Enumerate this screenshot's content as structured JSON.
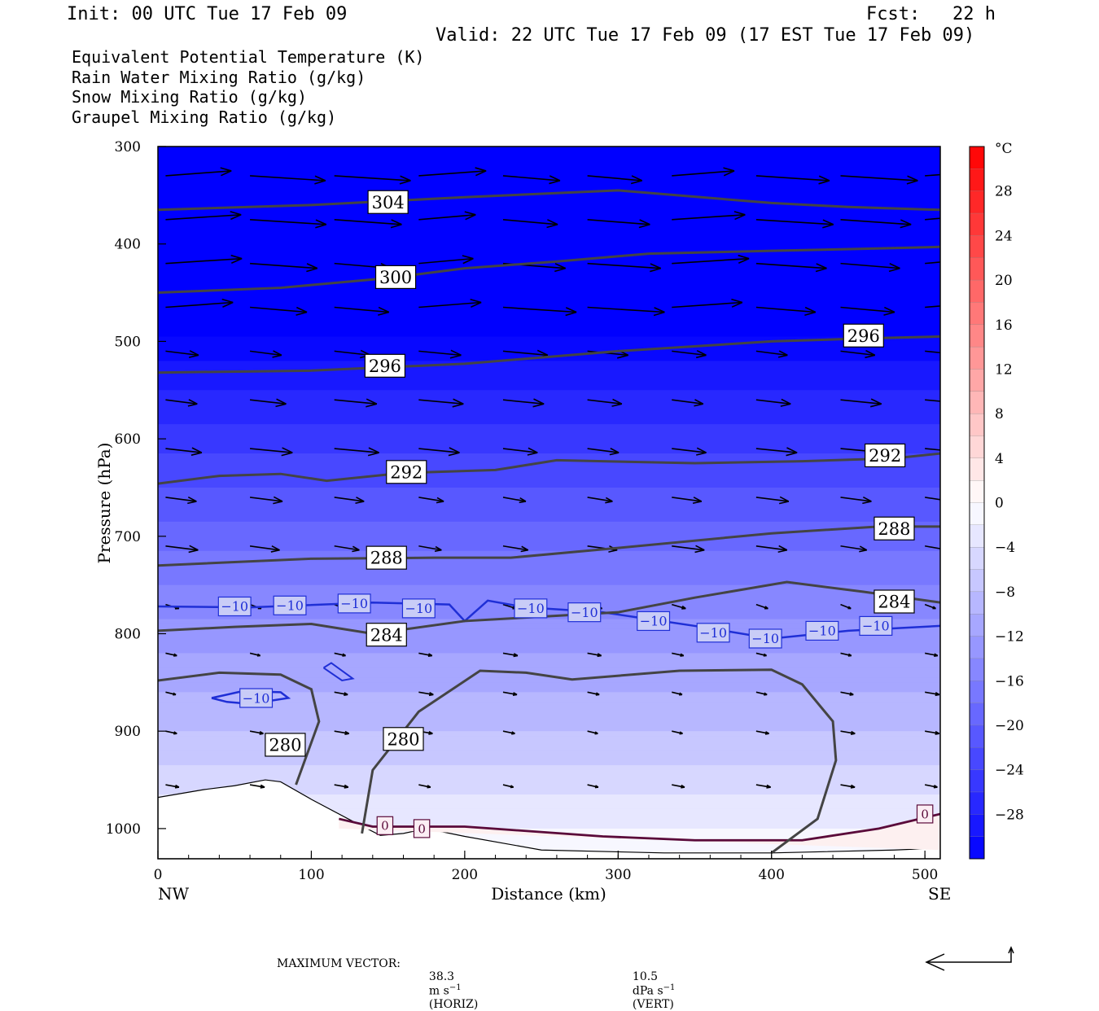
{
  "header": {
    "init": "Init: 00 UTC Tue 17 Feb 09",
    "fcst": "Fcst:   22 h",
    "valid": "Valid: 22 UTC Tue 17 Feb 09 (17 EST Tue 17 Feb 09)"
  },
  "legend": {
    "theta_e": {
      "label": "Equivalent Potential Temperature (K)",
      "color": "#555555"
    },
    "rain": {
      "label": "Rain Water Mixing Ratio (g/kg)",
      "color": "#0a7a0a"
    },
    "snow": {
      "label": "Snow Mixing Ratio (g/kg)",
      "color": "#f2a066"
    },
    "graupel": {
      "label": "Graupel Mixing Ratio (g/kg)",
      "color": "#ee82ee"
    }
  },
  "chart_data": {
    "type": "heatmap",
    "xlabel": "Distance (km)",
    "ylabel": "Pressure (hPa)",
    "x_range": [
      0,
      510
    ],
    "y_range": [
      300,
      1030
    ],
    "x_ticks": [
      0,
      100,
      200,
      300,
      400,
      500
    ],
    "y_ticks": [
      300,
      400,
      500,
      600,
      700,
      800,
      900,
      1000
    ],
    "x_end_labels": {
      "left": "NW",
      "right": "SE"
    },
    "colorbar": {
      "unit": "°C",
      "tick_labels": [
        "28",
        "24",
        "20",
        "16",
        "12",
        "8",
        "4",
        "0",
        "−4",
        "−8",
        "−12",
        "−16",
        "−20",
        "−24",
        "−28"
      ],
      "range": [
        -32,
        32
      ],
      "step": 2
    },
    "temperature_background": [
      {
        "p": 300,
        "t": -32
      },
      {
        "p": 480,
        "t": -32
      },
      {
        "p": 520,
        "t": -29
      },
      {
        "p": 600,
        "t": -24
      },
      {
        "p": 700,
        "t": -18
      },
      {
        "p": 800,
        "t": -12
      },
      {
        "p": 900,
        "t": -7
      },
      {
        "p": 1000,
        "t": -1
      },
      {
        "p": 1030,
        "t": 1
      }
    ],
    "theta_e_contours": [
      {
        "value": 304,
        "label": "304",
        "points": [
          [
            0,
            365
          ],
          [
            100,
            360
          ],
          [
            200,
            352
          ],
          [
            300,
            345
          ],
          [
            400,
            358
          ],
          [
            450,
            362
          ],
          [
            510,
            365
          ]
        ],
        "label_at": [
          150,
          357
        ]
      },
      {
        "value": 300,
        "label": "300",
        "points": [
          [
            0,
            450
          ],
          [
            80,
            445
          ],
          [
            150,
            435
          ],
          [
            200,
            425
          ],
          [
            260,
            418
          ],
          [
            320,
            410
          ],
          [
            400,
            407
          ],
          [
            460,
            405
          ],
          [
            510,
            403
          ]
        ],
        "label_at": [
          155,
          434
        ]
      },
      {
        "value": 296,
        "label": "296",
        "points": [
          [
            0,
            532
          ],
          [
            100,
            530
          ],
          [
            200,
            523
          ],
          [
            300,
            510
          ],
          [
            400,
            500
          ],
          [
            460,
            497
          ],
          [
            510,
            495
          ]
        ],
        "label_at": [
          148,
          525
        ]
      },
      {
        "value": 296,
        "label": "296",
        "points": [],
        "label_at": [
          460,
          494
        ]
      },
      {
        "value": 292,
        "label": "292",
        "points": [
          [
            0,
            646
          ],
          [
            40,
            638
          ],
          [
            80,
            636
          ],
          [
            110,
            643
          ],
          [
            160,
            635
          ],
          [
            220,
            632
          ],
          [
            260,
            622
          ],
          [
            350,
            625
          ],
          [
            420,
            623
          ],
          [
            480,
            620
          ],
          [
            510,
            615
          ]
        ],
        "label_at": [
          162,
          634
        ]
      },
      {
        "value": 292,
        "label": "292",
        "points": [],
        "label_at": [
          474,
          617
        ]
      },
      {
        "value": 288,
        "label": "288",
        "points": [
          [
            0,
            730
          ],
          [
            100,
            723
          ],
          [
            180,
            722
          ],
          [
            230,
            722
          ],
          [
            300,
            712
          ],
          [
            400,
            697
          ],
          [
            470,
            690
          ],
          [
            510,
            690
          ]
        ],
        "label_at": [
          149,
          722
        ]
      },
      {
        "value": 288,
        "label": "288",
        "points": [],
        "label_at": [
          480,
          692
        ]
      },
      {
        "value": 284,
        "label": "284",
        "points": [
          [
            0,
            797
          ],
          [
            50,
            793
          ],
          [
            100,
            790
          ],
          [
            140,
            800
          ],
          [
            200,
            787
          ],
          [
            300,
            778
          ],
          [
            350,
            763
          ],
          [
            410,
            747
          ],
          [
            460,
            757
          ],
          [
            510,
            768
          ]
        ],
        "label_at": [
          149,
          801
        ]
      },
      {
        "value": 284,
        "label": "284",
        "points": [],
        "label_at": [
          480,
          767
        ]
      },
      {
        "value": 280,
        "label": "280",
        "points": [
          [
            0,
            848
          ],
          [
            40,
            840
          ],
          [
            80,
            842
          ],
          [
            100,
            857
          ],
          [
            105,
            890
          ],
          [
            90,
            955
          ]
        ],
        "label_at": [
          83,
          914
        ]
      },
      {
        "value": 280,
        "label": "280",
        "points": [
          [
            133,
            1005
          ],
          [
            140,
            940
          ],
          [
            170,
            880
          ],
          [
            210,
            838
          ],
          [
            240,
            840
          ],
          [
            270,
            847
          ],
          [
            340,
            838
          ],
          [
            400,
            837
          ],
          [
            420,
            852
          ],
          [
            440,
            890
          ],
          [
            442,
            930
          ],
          [
            430,
            990
          ],
          [
            400,
            1025
          ]
        ],
        "label_at": [
          160,
          908
        ]
      }
    ],
    "temperature_labels": [
      {
        "value": "−10",
        "at": [
          50,
          772
        ]
      },
      {
        "value": "−10",
        "at": [
          86,
          771
        ]
      },
      {
        "value": "−10",
        "at": [
          128,
          769
        ]
      },
      {
        "value": "−10",
        "at": [
          170,
          774
        ]
      },
      {
        "value": "−10",
        "at": [
          243,
          774
        ]
      },
      {
        "value": "−10",
        "at": [
          278,
          778
        ]
      },
      {
        "value": "−10",
        "at": [
          323,
          787
        ]
      },
      {
        "value": "−10",
        "at": [
          362,
          799
        ]
      },
      {
        "value": "−10",
        "at": [
          396,
          805
        ]
      },
      {
        "value": "−10",
        "at": [
          433,
          797
        ]
      },
      {
        "value": "−10",
        "at": [
          468,
          792
        ]
      },
      {
        "value": "−10",
        "at": [
          64,
          866
        ]
      },
      {
        "value": "0",
        "at": [
          148,
          997
        ]
      },
      {
        "value": "0",
        "at": [
          172,
          1000
        ]
      },
      {
        "value": "0",
        "at": [
          500,
          985
        ]
      }
    ],
    "minus10_isotherm": [
      [
        0,
        772
      ],
      [
        60,
        773
      ],
      [
        140,
        768
      ],
      [
        190,
        770
      ],
      [
        200,
        787
      ],
      [
        215,
        766
      ],
      [
        240,
        773
      ],
      [
        290,
        778
      ],
      [
        350,
        792
      ],
      [
        400,
        805
      ],
      [
        450,
        797
      ],
      [
        510,
        792
      ]
    ],
    "zero_isotherm": [
      [
        118,
        990
      ],
      [
        140,
        998
      ],
      [
        200,
        998
      ],
      [
        290,
        1008
      ],
      [
        350,
        1012
      ],
      [
        420,
        1012
      ],
      [
        470,
        1000
      ],
      [
        510,
        985
      ]
    ],
    "terrain": [
      [
        0,
        968
      ],
      [
        30,
        960
      ],
      [
        50,
        956
      ],
      [
        70,
        950
      ],
      [
        80,
        952
      ],
      [
        100,
        970
      ],
      [
        130,
        995
      ],
      [
        145,
        1007
      ],
      [
        160,
        1005
      ],
      [
        175,
        1000
      ],
      [
        200,
        1008
      ],
      [
        250,
        1022
      ],
      [
        330,
        1025
      ],
      [
        400,
        1025
      ],
      [
        480,
        1022
      ],
      [
        510,
        1020
      ]
    ],
    "max_vector": {
      "horiz": "38.3",
      "vert": "10.5"
    }
  },
  "footer": {
    "prefix": "MAXIMUM VECTOR:",
    "horiz_unit": "m s",
    "horiz_tag": "(HORIZ)",
    "vert_unit": "dPa s",
    "vert_tag": "(VERT)"
  }
}
